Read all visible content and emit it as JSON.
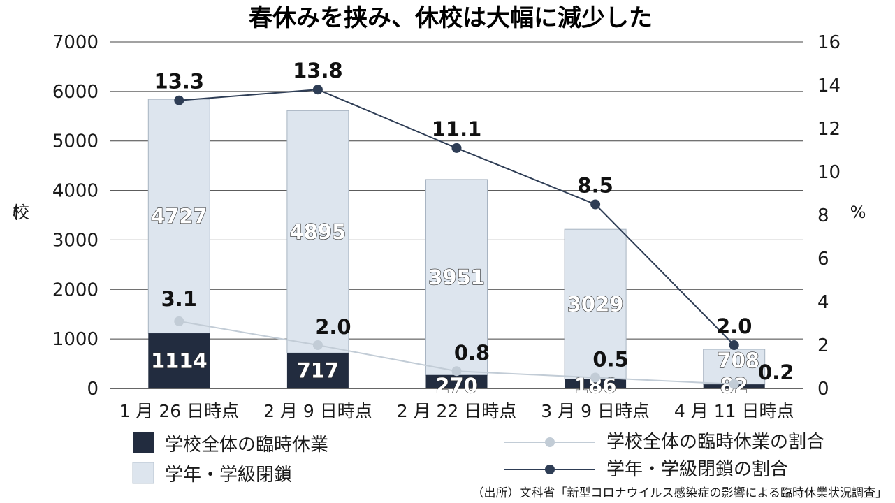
{
  "chart_data": {
    "type": "bar",
    "title": "春休みを挟み、休校は大幅に減少した",
    "categories": [
      "1 月 26 日時点",
      "2 月 9 日時点",
      "2 月 22 日時点",
      "3 月 9 日時点",
      "4 月 11 日時点"
    ],
    "y_left_label": "校",
    "y_left_ticks": [
      "0",
      "1000",
      "2000",
      "3000",
      "4000",
      "5000",
      "6000",
      "7000"
    ],
    "y_left_range": [
      0,
      7000
    ],
    "y_right_label": "%",
    "y_right_ticks": [
      "0",
      "2",
      "4",
      "6",
      "8",
      "10",
      "12",
      "14",
      "16"
    ],
    "y_right_range": [
      0,
      16
    ],
    "stacked_bars": [
      {
        "name": "学校全体の臨時休業",
        "color": "#222c3f",
        "values": [
          1114,
          717,
          270,
          186,
          82
        ],
        "labels": [
          "1114",
          "717",
          "270",
          "186",
          "82"
        ]
      },
      {
        "name": "学年・学級閉鎖",
        "color": "#dde5ee",
        "values": [
          4727,
          4895,
          3951,
          3029,
          708
        ],
        "labels": [
          "4727",
          "4895",
          "3951",
          "3029",
          "708"
        ]
      }
    ],
    "lines": [
      {
        "name": "学校全体の臨時休業の割合",
        "color": "#c2ccd6",
        "values": [
          3.1,
          2.0,
          0.8,
          0.5,
          0.2
        ],
        "labels": [
          "3.1",
          "2.0",
          "0.8",
          "0.5",
          "0.2"
        ]
      },
      {
        "name": "学年・学級閉鎖の割合",
        "color": "#2e3d55",
        "values": [
          13.3,
          13.8,
          11.1,
          8.5,
          2.0
        ],
        "labels": [
          "13.3",
          "13.8",
          "11.1",
          "8.5",
          "2.0"
        ]
      }
    ],
    "legend": [
      "学校全体の臨時休業",
      "学年・学級閉鎖",
      "学校全体の臨時休業の割合",
      "学年・学級閉鎖の割合"
    ],
    "source": "（出所）文科省「新型コロナウイルス感染症の影響による臨時休業状況調査」",
    "grid": true
  }
}
